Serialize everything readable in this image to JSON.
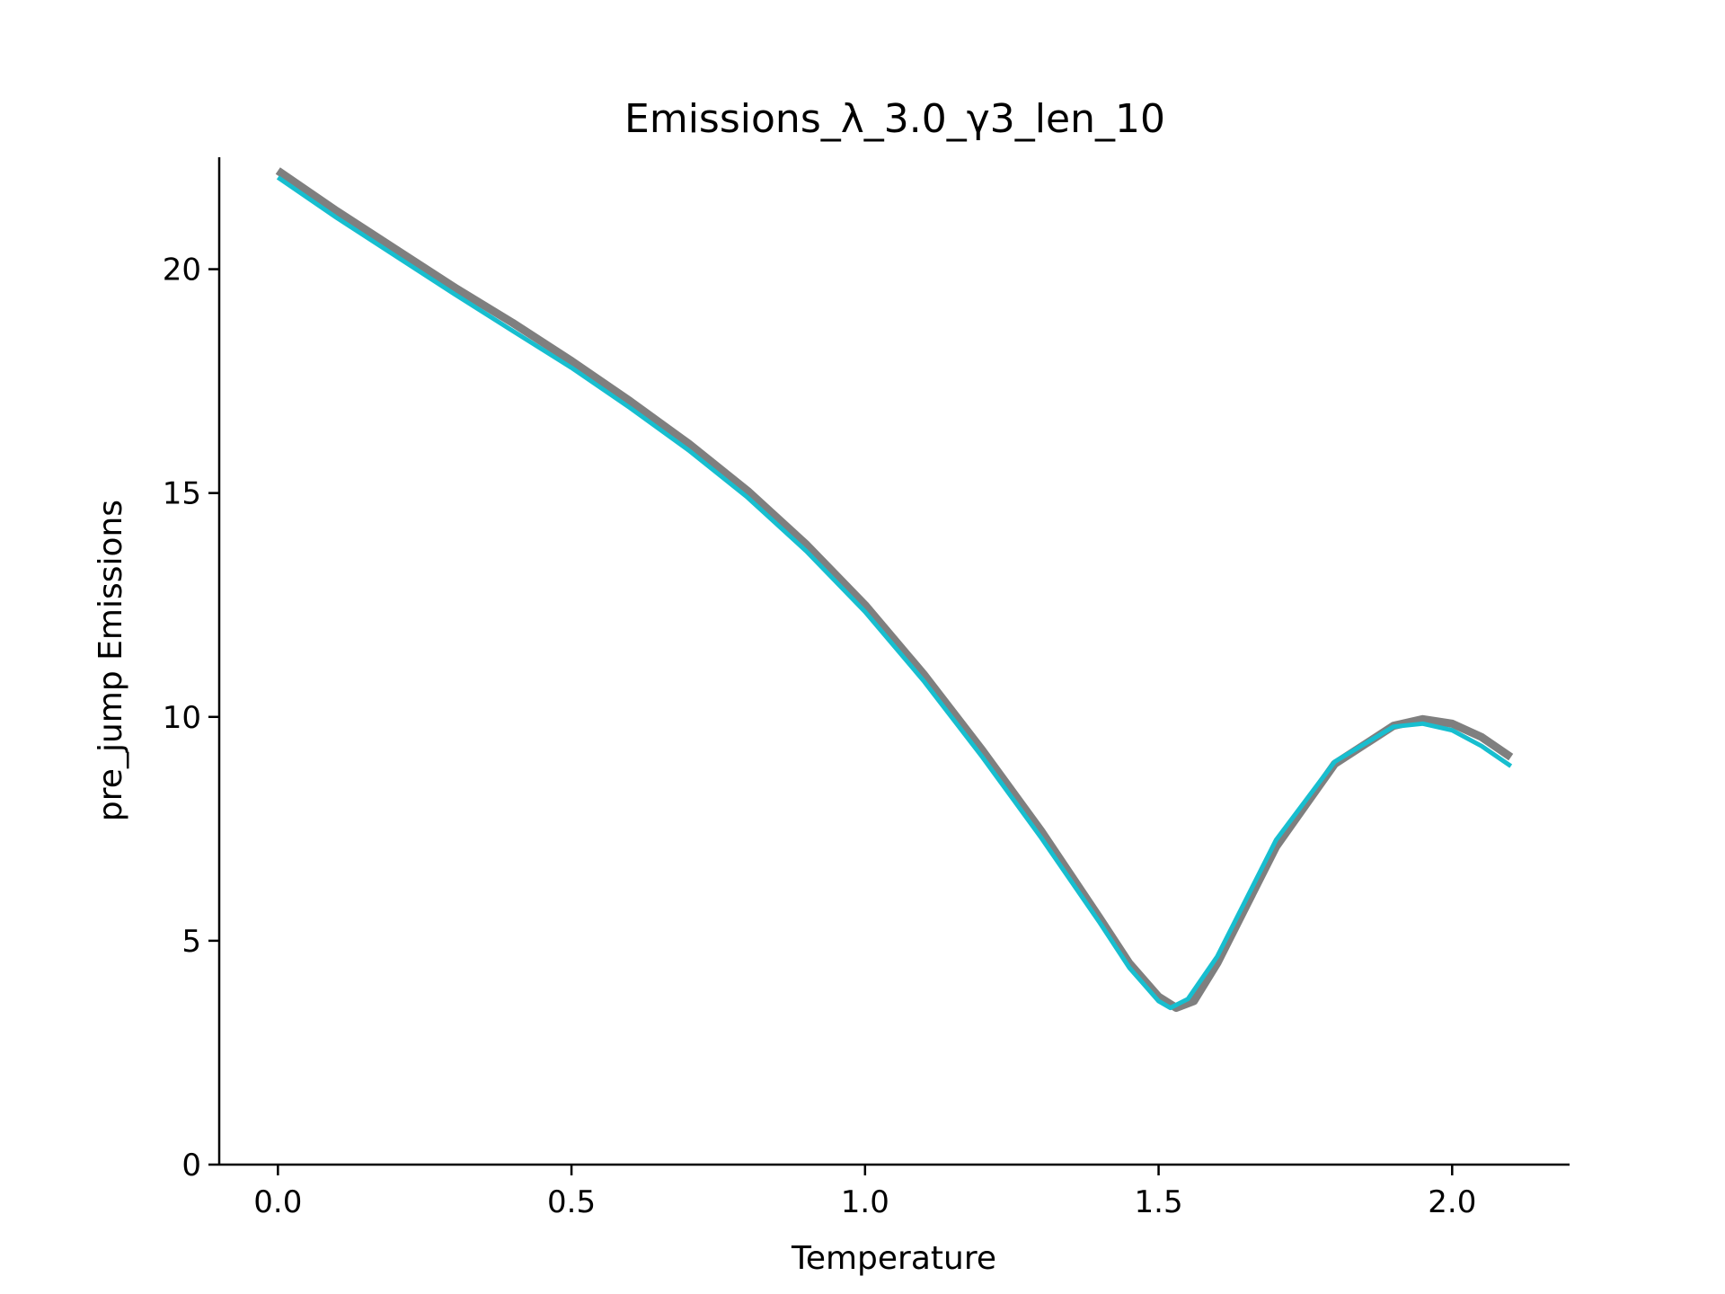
{
  "chart_data": {
    "type": "line",
    "title": "Emissions_λ_3.0_γ3_len_10",
    "xlabel": "Temperature",
    "ylabel": "pre_jump Emissions",
    "xlim": [
      -0.1,
      2.2
    ],
    "ylim": [
      0,
      22.5
    ],
    "xticks": [
      0.0,
      0.5,
      1.0,
      1.5,
      2.0
    ],
    "xtick_labels": [
      "0.0",
      "0.5",
      "1.0",
      "1.5",
      "2.0"
    ],
    "yticks": [
      0,
      5,
      10,
      15,
      20
    ],
    "ytick_labels": [
      "0",
      "5",
      "10",
      "15",
      "20"
    ],
    "grid": false,
    "legend": "none",
    "series": [
      {
        "color": "#7f7f7f",
        "x": [
          0.0,
          0.1,
          0.2,
          0.3,
          0.4,
          0.5,
          0.6,
          0.7,
          0.8,
          0.9,
          1.0,
          1.1,
          1.2,
          1.3,
          1.4,
          1.45,
          1.5,
          1.53,
          1.56,
          1.6,
          1.7,
          1.8,
          1.9,
          1.95,
          2.0,
          2.05,
          2.1
        ],
        "y": [
          22.2,
          21.3,
          20.45,
          19.6,
          18.8,
          17.95,
          17.05,
          16.1,
          15.05,
          13.85,
          12.5,
          10.95,
          9.25,
          7.45,
          5.5,
          4.5,
          3.75,
          3.5,
          3.65,
          4.5,
          7.1,
          8.95,
          9.8,
          9.95,
          9.85,
          9.55,
          9.1
        ]
      },
      {
        "color": "#17becf",
        "x": [
          0.0,
          0.1,
          0.2,
          0.3,
          0.4,
          0.5,
          0.6,
          0.7,
          0.8,
          0.9,
          1.0,
          1.1,
          1.2,
          1.3,
          1.4,
          1.45,
          1.5,
          1.52,
          1.55,
          1.6,
          1.7,
          1.8,
          1.9,
          1.95,
          2.0,
          2.05,
          2.1
        ],
        "y": [
          22.05,
          21.15,
          20.3,
          19.45,
          18.62,
          17.8,
          16.9,
          15.95,
          14.9,
          13.7,
          12.35,
          10.8,
          9.1,
          7.3,
          5.4,
          4.4,
          3.65,
          3.5,
          3.7,
          4.65,
          7.25,
          9.0,
          9.78,
          9.85,
          9.7,
          9.35,
          8.9
        ]
      }
    ]
  }
}
